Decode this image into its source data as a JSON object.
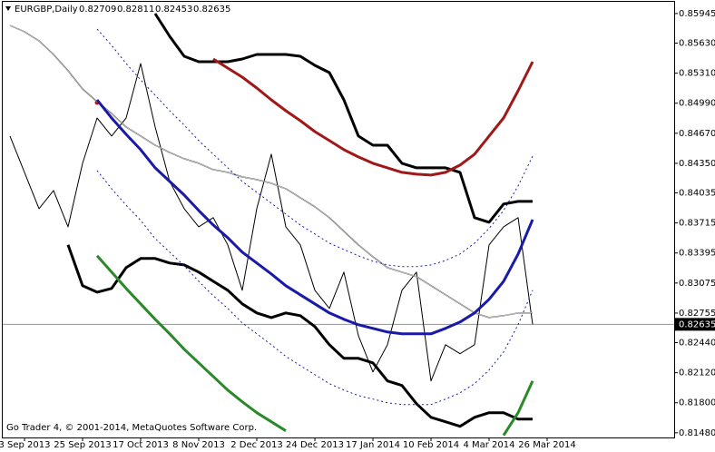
{
  "chart_data": {
    "type": "line",
    "title": "EURGBP,Daily",
    "ohlc": [
      0.82709,
      0.82811,
      0.82453,
      0.82635
    ],
    "copyright": "Go Trader 4, © 2001-2014, MetaQuotes Software Corp.",
    "current_price": 0.82635,
    "categories": [
      null,
      "3 Sep 2013",
      null,
      null,
      null,
      "25 Sep 2013",
      null,
      null,
      null,
      "17 Oct 2013",
      null,
      null,
      null,
      "8 Nov 2013",
      null,
      null,
      null,
      "2 Dec 2013",
      null,
      null,
      null,
      "24 Dec 2013",
      null,
      null,
      null,
      "17 Jan 2014",
      null,
      null,
      null,
      "10 Feb 2014",
      null,
      null,
      null,
      "4 Mar 2014",
      null,
      null,
      null,
      "26 Mar 2014"
    ],
    "ylim": [
      0.8143,
      0.8607
    ],
    "yticks": [
      0.85945,
      {
        "value": 0.8563,
        "label": "0.85630"
      },
      {
        "value": 0.8531,
        "label": "0.85310"
      },
      {
        "value": 0.8499,
        "label": "0.84990"
      },
      {
        "value": 0.8467,
        "label": "0.84670"
      },
      {
        "value": 0.8435,
        "label": "0.84350"
      },
      0.84035,
      0.83715,
      0.83395,
      0.83075,
      0.82755,
      {
        "value": 0.8244,
        "label": "0.82440"
      },
      {
        "value": 0.8212,
        "label": "0.82120"
      },
      {
        "value": 0.818,
        "label": "0.81800"
      },
      {
        "value": 0.8148,
        "label": "0.81480"
      }
    ],
    "grid": false,
    "series": [
      {
        "color": "#000000",
        "style": "thin",
        "values": [
          0.8464,
          0.84254,
          0.83867,
          0.8406,
          0.83674,
          0.8435,
          0.84833,
          0.8464,
          0.84833,
          0.85413,
          0.84737,
          0.84157,
          0.83867,
          0.83674,
          0.83771,
          0.83481,
          0.82998,
          0.83867,
          0.84447,
          0.83674,
          0.83481,
          0.82998,
          0.82805,
          0.83191,
          0.82515,
          0.82128,
          0.82418,
          0.82998,
          0.83191,
          0.82032,
          0.82418,
          0.82322,
          0.82418,
          0.83481,
          0.83674,
          0.83771,
          0.82635,
          null
        ]
      },
      {
        "color": "#666666",
        "style": "double",
        "values": [
          0.85819,
          0.85751,
          0.85654,
          0.85509,
          0.85336,
          0.85142,
          0.85007,
          0.84881,
          0.84737,
          0.8464,
          0.84543,
          0.84466,
          0.84399,
          0.8435,
          0.84283,
          0.84254,
          0.84205,
          0.84176,
          0.84138,
          0.8408,
          0.83983,
          0.83887,
          0.83771,
          0.83626,
          0.83481,
          0.83355,
          0.83239,
          0.83191,
          0.83143,
          0.83046,
          0.8295,
          0.82853,
          0.82756,
          0.82707,
          0.82727,
          0.82756,
          0.82756,
          null
        ]
      },
      {
        "color": "#000000",
        "style": "thick",
        "values": [
          null,
          null,
          null,
          null,
          null,
          null,
          null,
          null,
          null,
          null,
          0.85944,
          0.85703,
          0.8549,
          0.85432,
          0.85432,
          0.85432,
          0.85461,
          0.85509,
          0.85509,
          0.85509,
          0.8549,
          0.85393,
          0.85316,
          0.85026,
          0.8464,
          0.84543,
          0.84543,
          0.8435,
          0.84302,
          0.84302,
          0.84302,
          0.84254,
          0.83771,
          0.83722,
          0.83916,
          0.83944,
          0.83944,
          null
        ]
      },
      {
        "color": "#000000",
        "style": "thick",
        "values": [
          null,
          null,
          null,
          null,
          0.83481,
          0.83046,
          0.82978,
          0.83017,
          0.83239,
          0.83336,
          0.83336,
          0.83288,
          0.83268,
          0.83191,
          0.83094,
          0.82998,
          0.82853,
          0.82756,
          0.82707,
          0.82756,
          0.82727,
          0.82611,
          0.82418,
          0.82273,
          0.82273,
          0.82225,
          0.82032,
          0.81984,
          0.8179,
          0.81645,
          0.81597,
          0.81549,
          0.81645,
          0.81694,
          0.81694,
          0.81626,
          0.81626,
          null
        ]
      },
      {
        "color": "#1a1aa8",
        "style": "thick",
        "values": [
          null,
          null,
          null,
          null,
          null,
          null,
          0.85026,
          0.84833,
          0.84659,
          0.84495,
          0.84302,
          0.84157,
          0.84012,
          0.83848,
          0.83693,
          0.83558,
          0.83404,
          0.83288,
          0.83172,
          0.83046,
          0.8295,
          0.82853,
          0.82756,
          0.82689,
          0.82631,
          0.82592,
          0.82553,
          0.82534,
          0.82534,
          0.82534,
          0.82592,
          0.8266,
          0.82756,
          0.82901,
          0.83094,
          0.83384,
          0.83751,
          null
        ]
      },
      {
        "color": "#1a1aa8",
        "style": "dotted",
        "values": [
          null,
          null,
          null,
          null,
          null,
          null,
          0.8578,
          0.85606,
          0.85413,
          0.85239,
          0.85075,
          0.8491,
          0.84756,
          0.84592,
          0.84447,
          0.84302,
          0.84157,
          0.84041,
          0.83925,
          0.83809,
          0.83693,
          0.83597,
          0.835,
          0.83432,
          0.83365,
          0.83307,
          0.83268,
          0.83249,
          0.83249,
          0.83268,
          0.83315,
          0.83384,
          0.835,
          0.83655,
          0.83848,
          0.84109,
          0.84427,
          null
        ]
      },
      {
        "color": "#1a1aa8",
        "style": "dotted",
        "values": [
          null,
          null,
          null,
          null,
          null,
          null,
          0.84273,
          0.8408,
          0.83905,
          0.83742,
          0.83548,
          0.83404,
          0.83259,
          0.83094,
          0.8294,
          0.82805,
          0.8265,
          0.82534,
          0.82418,
          0.82293,
          0.82196,
          0.82099,
          0.82003,
          0.81935,
          0.81877,
          0.81839,
          0.818,
          0.81781,
          0.81781,
          0.81781,
          0.81839,
          0.81906,
          0.82003,
          0.82148,
          0.82341,
          0.82631,
          0.82998,
          null
        ]
      },
      {
        "color": "#a01818",
        "style": "thick",
        "values": [
          null,
          null,
          null,
          null,
          null,
          null,
          null,
          null,
          null,
          null,
          null,
          null,
          null,
          null,
          0.85461,
          0.85364,
          0.85268,
          0.85152,
          0.85026,
          0.8491,
          0.84804,
          0.84688,
          0.84592,
          0.84495,
          0.84418,
          0.8435,
          0.84302,
          0.84254,
          0.84234,
          0.84225,
          0.84254,
          0.84331,
          0.84447,
          0.8464,
          0.84833,
          0.85123,
          0.85432,
          null
        ]
      },
      {
        "color": "#2a8a2a",
        "style": "thick",
        "values": [
          null,
          null,
          null,
          null,
          null,
          null,
          0.83365,
          0.83191,
          0.83017,
          0.82853,
          0.82689,
          0.82534,
          0.8237,
          0.82225,
          0.8208,
          0.81935,
          0.8181,
          0.81694,
          0.81597,
          0.81501,
          null,
          null,
          null,
          null,
          null,
          null,
          null,
          null,
          null,
          null,
          null,
          null,
          null,
          null,
          0.81452,
          0.81694,
          0.82032,
          null
        ]
      }
    ]
  }
}
